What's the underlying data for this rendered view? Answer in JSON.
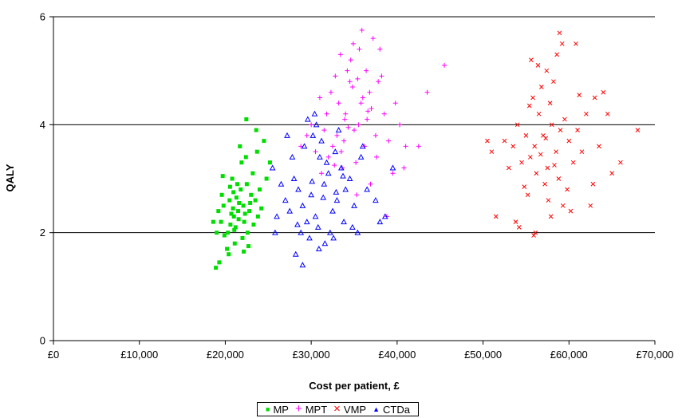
{
  "chart_data": {
    "type": "scatter",
    "xlabel": "Cost per patient, £",
    "ylabel": "QALY",
    "xlim": [
      0,
      70000
    ],
    "ylim": [
      0,
      6
    ],
    "x_ticks": [
      {
        "value": 0,
        "label": "£0"
      },
      {
        "value": 10000,
        "label": "£10,000"
      },
      {
        "value": 20000,
        "label": "£20,000"
      },
      {
        "value": 30000,
        "label": "£30,000"
      },
      {
        "value": 40000,
        "label": "£40,000"
      },
      {
        "value": 50000,
        "label": "£50,000"
      },
      {
        "value": 60000,
        "label": "£60,000"
      },
      {
        "value": 70000,
        "label": "£70,000"
      }
    ],
    "y_ticks": [
      {
        "value": 0,
        "label": "0"
      },
      {
        "value": 2,
        "label": "2"
      },
      {
        "value": 4,
        "label": "4"
      },
      {
        "value": 6,
        "label": "6"
      }
    ],
    "grid": "horizontal major gridlines",
    "legend_position": "bottom",
    "series": [
      {
        "name": "MP",
        "marker": "square",
        "color": "#00dd00",
        "points": [
          [
            21500,
            2.4
          ],
          [
            20500,
            2.6
          ],
          [
            22200,
            2.2
          ],
          [
            21000,
            2.3
          ],
          [
            23000,
            2.7
          ],
          [
            19800,
            2.5
          ],
          [
            22500,
            2.9
          ],
          [
            21200,
            2.1
          ],
          [
            20300,
            2.0
          ],
          [
            22800,
            2.4
          ],
          [
            21800,
            2.8
          ],
          [
            19500,
            2.2
          ],
          [
            23500,
            2.6
          ],
          [
            20800,
            3.0
          ],
          [
            22000,
            1.9
          ],
          [
            21600,
            2.55
          ],
          [
            20900,
            2.45
          ],
          [
            22300,
            2.35
          ],
          [
            21300,
            2.65
          ],
          [
            20600,
            2.15
          ],
          [
            23200,
            3.1
          ],
          [
            19200,
            2.4
          ],
          [
            24000,
            2.8
          ],
          [
            21900,
            3.3
          ],
          [
            20200,
            1.7
          ],
          [
            22600,
            2.0
          ],
          [
            21100,
            1.8
          ],
          [
            19600,
            2.7
          ],
          [
            23800,
            2.3
          ],
          [
            21400,
            2.9
          ],
          [
            22100,
            2.5
          ],
          [
            20700,
            2.35
          ],
          [
            18900,
            1.35
          ],
          [
            19300,
            1.45
          ],
          [
            24500,
            3.7
          ],
          [
            25200,
            3.3
          ],
          [
            23600,
            3.9
          ],
          [
            21700,
            3.6
          ],
          [
            20400,
            1.6
          ],
          [
            22700,
            1.75
          ],
          [
            24800,
            3.0
          ],
          [
            19000,
            2.0
          ],
          [
            22400,
            3.4
          ],
          [
            21550,
            2.25
          ],
          [
            20950,
            2.75
          ],
          [
            22900,
            2.55
          ],
          [
            19900,
            1.95
          ],
          [
            23300,
            2.15
          ],
          [
            22450,
            4.1
          ],
          [
            18600,
            2.2
          ],
          [
            24200,
            2.45
          ],
          [
            21050,
            2.05
          ],
          [
            20550,
            2.85
          ],
          [
            23700,
            3.5
          ],
          [
            22150,
            1.65
          ],
          [
            19700,
            3.05
          ]
        ]
      },
      {
        "name": "MPT",
        "marker": "plus",
        "color": "#ff00ff",
        "points": [
          [
            34000,
            4.2
          ],
          [
            35500,
            4.0
          ],
          [
            33000,
            3.8
          ],
          [
            36000,
            4.5
          ],
          [
            32500,
            3.6
          ],
          [
            34800,
            4.7
          ],
          [
            37000,
            4.3
          ],
          [
            33500,
            3.5
          ],
          [
            35000,
            3.9
          ],
          [
            36500,
            4.1
          ],
          [
            32000,
            3.4
          ],
          [
            34500,
            4.8
          ],
          [
            33800,
            3.7
          ],
          [
            35800,
            4.4
          ],
          [
            37500,
            3.8
          ],
          [
            31500,
            3.9
          ],
          [
            34200,
            5.0
          ],
          [
            36800,
            4.6
          ],
          [
            33200,
            4.4
          ],
          [
            35200,
            3.3
          ],
          [
            38500,
            4.2
          ],
          [
            30500,
            3.5
          ],
          [
            34600,
            5.2
          ],
          [
            36200,
            3.6
          ],
          [
            32800,
            4.9
          ],
          [
            35600,
            5.4
          ],
          [
            37800,
            4.8
          ],
          [
            31800,
            4.2
          ],
          [
            33600,
            3.2
          ],
          [
            36400,
            5.0
          ],
          [
            30000,
            4.0
          ],
          [
            39000,
            3.7
          ],
          [
            35900,
            5.75
          ],
          [
            37200,
            5.6
          ],
          [
            34900,
            5.5
          ],
          [
            33400,
            5.3
          ],
          [
            38000,
            5.4
          ],
          [
            40300,
            4.0
          ],
          [
            41000,
            3.6
          ],
          [
            42500,
            3.6
          ],
          [
            43500,
            4.6
          ],
          [
            45500,
            5.1
          ],
          [
            39500,
            3.1
          ],
          [
            38800,
            2.3
          ],
          [
            31200,
            3.1
          ],
          [
            32300,
            4.6
          ],
          [
            29500,
            3.8
          ],
          [
            28800,
            3.6
          ],
          [
            37600,
            3.4
          ],
          [
            36900,
            2.9
          ],
          [
            35300,
            2.7
          ],
          [
            40800,
            3.2
          ],
          [
            38200,
            4.9
          ],
          [
            33900,
            4.1
          ],
          [
            34300,
            3.95
          ],
          [
            32700,
            3.25
          ],
          [
            39800,
            4.4
          ],
          [
            36600,
            4.25
          ],
          [
            31000,
            4.5
          ],
          [
            35400,
            4.85
          ]
        ]
      },
      {
        "name": "VMP",
        "marker": "x",
        "color": "#ff0000",
        "points": [
          [
            57000,
            3.8
          ],
          [
            56000,
            3.6
          ],
          [
            58000,
            4.0
          ],
          [
            55500,
            3.4
          ],
          [
            59000,
            3.9
          ],
          [
            57500,
            3.2
          ],
          [
            56500,
            4.2
          ],
          [
            58500,
            3.5
          ],
          [
            55000,
            3.8
          ],
          [
            60000,
            3.7
          ],
          [
            54500,
            3.3
          ],
          [
            57800,
            4.4
          ],
          [
            56200,
            3.1
          ],
          [
            59500,
            4.1
          ],
          [
            55800,
            4.5
          ],
          [
            58800,
            3.0
          ],
          [
            53500,
            3.6
          ],
          [
            61000,
            3.9
          ],
          [
            57200,
            2.9
          ],
          [
            56800,
            4.7
          ],
          [
            54000,
            4.0
          ],
          [
            60500,
            3.3
          ],
          [
            52500,
            3.7
          ],
          [
            62000,
            4.2
          ],
          [
            55200,
            2.7
          ],
          [
            58200,
            4.8
          ],
          [
            57600,
            2.6
          ],
          [
            59800,
            2.8
          ],
          [
            53000,
            3.2
          ],
          [
            61500,
            3.5
          ],
          [
            56400,
            5.1
          ],
          [
            58600,
            5.3
          ],
          [
            59200,
            5.5
          ],
          [
            58900,
            5.7
          ],
          [
            60800,
            5.5
          ],
          [
            55600,
            5.2
          ],
          [
            57400,
            5.0
          ],
          [
            63000,
            4.5
          ],
          [
            64500,
            4.2
          ],
          [
            65000,
            3.1
          ],
          [
            66000,
            3.3
          ],
          [
            68000,
            3.9
          ],
          [
            64000,
            4.6
          ],
          [
            62500,
            2.5
          ],
          [
            60200,
            2.4
          ],
          [
            56100,
            2.0
          ],
          [
            54200,
            2.1
          ],
          [
            57900,
            2.3
          ],
          [
            55900,
            1.95
          ],
          [
            51500,
            2.3
          ],
          [
            50500,
            3.7
          ],
          [
            51000,
            3.5
          ],
          [
            53800,
            2.2
          ],
          [
            63500,
            3.6
          ],
          [
            62800,
            2.9
          ],
          [
            59300,
            2.5
          ],
          [
            56700,
            3.45
          ],
          [
            57300,
            3.75
          ],
          [
            58300,
            3.25
          ],
          [
            55400,
            4.35
          ],
          [
            61200,
            4.55
          ],
          [
            54800,
            2.85
          ]
        ]
      },
      {
        "name": "CTDa",
        "marker": "triangle",
        "color": "#0000ff",
        "points": [
          [
            30000,
            2.7
          ],
          [
            31500,
            2.9
          ],
          [
            29000,
            2.5
          ],
          [
            32000,
            3.1
          ],
          [
            30500,
            2.3
          ],
          [
            28500,
            2.8
          ],
          [
            33000,
            2.6
          ],
          [
            31000,
            3.4
          ],
          [
            29500,
            2.2
          ],
          [
            32500,
            2.4
          ],
          [
            28000,
            3.0
          ],
          [
            34000,
            2.8
          ],
          [
            30800,
            2.1
          ],
          [
            31800,
            3.3
          ],
          [
            29200,
            3.6
          ],
          [
            33500,
            3.2
          ],
          [
            27500,
            2.4
          ],
          [
            30200,
            3.8
          ],
          [
            32200,
            2.0
          ],
          [
            34500,
            3.0
          ],
          [
            29800,
            1.9
          ],
          [
            31200,
            3.7
          ],
          [
            27000,
            2.6
          ],
          [
            35000,
            2.5
          ],
          [
            28800,
            2.0
          ],
          [
            33800,
            2.2
          ],
          [
            30600,
            4.0
          ],
          [
            32800,
            3.5
          ],
          [
            26500,
            2.9
          ],
          [
            31600,
            1.8
          ],
          [
            29600,
            4.1
          ],
          [
            35800,
            3.4
          ],
          [
            33200,
            3.9
          ],
          [
            30400,
            4.2
          ],
          [
            26000,
            2.3
          ],
          [
            27800,
            3.4
          ],
          [
            34800,
            2.1
          ],
          [
            36500,
            2.8
          ],
          [
            37500,
            2.6
          ],
          [
            38000,
            2.2
          ],
          [
            36000,
            3.6
          ],
          [
            39500,
            3.2
          ],
          [
            28200,
            1.6
          ],
          [
            30900,
            1.7
          ],
          [
            25500,
            3.2
          ],
          [
            25800,
            2.0
          ],
          [
            32600,
            1.9
          ],
          [
            35400,
            2.0
          ],
          [
            38600,
            2.3
          ],
          [
            29000,
            1.4
          ],
          [
            31400,
            2.65
          ],
          [
            30100,
            2.95
          ],
          [
            32900,
            2.75
          ],
          [
            28400,
            2.15
          ],
          [
            33700,
            3.05
          ],
          [
            27200,
            3.8
          ]
        ]
      }
    ]
  },
  "colors": {
    "gridline": "#000000",
    "axis": "#000000",
    "background": "#ffffff"
  }
}
